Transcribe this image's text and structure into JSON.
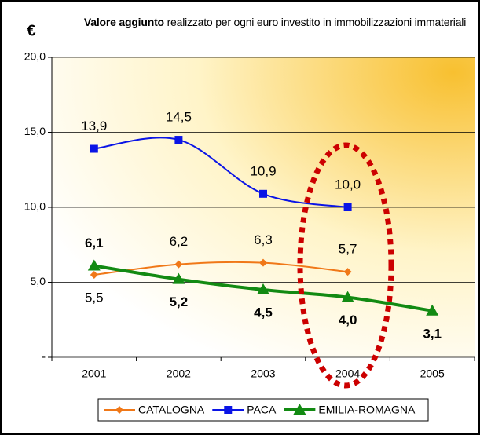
{
  "chart_data": {
    "type": "line",
    "title_bold": "Valore aggiunto",
    "title": "realizzato per ogni euro investito in immobilizzazioni immateriali",
    "y_label": "€",
    "categories": [
      "2001",
      "2002",
      "2003",
      "2004",
      "2005"
    ],
    "ylim": [
      0,
      20
    ],
    "yticks": [
      {
        "value": 0,
        "label": "-"
      },
      {
        "value": 5,
        "label": "5,0"
      },
      {
        "value": 10,
        "label": "10,0"
      },
      {
        "value": 15,
        "label": "15,0"
      },
      {
        "value": 20,
        "label": "20,0"
      }
    ],
    "grid": true,
    "legend": "bottom",
    "series": [
      {
        "name": "CATALOGNA",
        "color": "#f07818",
        "marker": "diamond",
        "values": [
          5.5,
          6.2,
          6.3,
          5.7,
          null
        ],
        "value_labels": [
          "5,5",
          "6,2",
          "6,3",
          "5,7",
          null
        ]
      },
      {
        "name": "PACA",
        "color": "#0a14e6",
        "marker": "square",
        "values": [
          13.9,
          14.5,
          10.9,
          10.0,
          null
        ],
        "value_labels": [
          "13,9",
          "14,5",
          "10,9",
          "10,0",
          null
        ]
      },
      {
        "name": "EMILIA-ROMAGNA",
        "color": "#128a12",
        "marker": "triangle",
        "values": [
          6.1,
          5.2,
          4.5,
          4.0,
          3.1
        ],
        "value_labels": [
          "6,1",
          "5,2",
          "4,5",
          "4,0",
          "3,1"
        ]
      }
    ]
  }
}
